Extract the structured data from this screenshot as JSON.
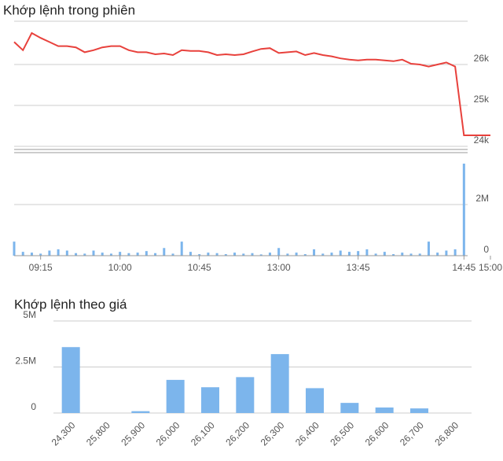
{
  "chart_data": [
    {
      "type": "line",
      "title": "Khớp lệnh trong phiên",
      "color": "#e8413c",
      "x": [
        "09:00",
        "09:05",
        "09:10",
        "09:15",
        "09:20",
        "09:25",
        "09:30",
        "09:35",
        "09:40",
        "09:45",
        "09:50",
        "09:55",
        "10:00",
        "10:05",
        "10:10",
        "10:15",
        "10:20",
        "10:25",
        "10:30",
        "10:35",
        "10:40",
        "10:45",
        "10:50",
        "10:55",
        "11:00",
        "11:05",
        "11:10",
        "11:15",
        "11:20",
        "11:25",
        "13:00",
        "13:05",
        "13:10",
        "13:15",
        "13:20",
        "13:25",
        "13:30",
        "13:35",
        "13:40",
        "13:45",
        "13:50",
        "13:55",
        "14:00",
        "14:05",
        "14:10",
        "14:15",
        "14:20",
        "14:25",
        "14:30",
        "14:35",
        "14:40",
        "14:45",
        "15:00"
      ],
      "values": [
        26550,
        26350,
        26770,
        26650,
        26550,
        26450,
        26450,
        26420,
        26300,
        26350,
        26420,
        26450,
        26450,
        26350,
        26300,
        26300,
        26250,
        26270,
        26230,
        26350,
        26330,
        26330,
        26300,
        26230,
        26250,
        26230,
        26250,
        26320,
        26380,
        26400,
        26280,
        26300,
        26320,
        26230,
        26280,
        26230,
        26200,
        26150,
        26120,
        26100,
        26120,
        26120,
        26100,
        26080,
        26120,
        26020,
        26000,
        25950,
        26000,
        26050,
        25950,
        24270,
        24270
      ],
      "ylim": [
        24000,
        27000
      ],
      "yticks": [
        {
          "value": 24000,
          "label": "24k"
        },
        {
          "value": 25000,
          "label": "25k"
        },
        {
          "value": 26000,
          "label": "26k"
        }
      ],
      "xticks": [
        "09:15",
        "10:00",
        "10:45",
        "13:00",
        "13:45",
        "14:45",
        "15:00"
      ],
      "volume": {
        "color": "#7cb5ec",
        "values": [
          550000,
          150000,
          120000,
          80000,
          200000,
          250000,
          200000,
          100000,
          80000,
          200000,
          120000,
          80000,
          150000,
          100000,
          120000,
          180000,
          100000,
          300000,
          80000,
          550000,
          150000,
          60000,
          120000,
          100000,
          60000,
          120000,
          80000,
          100000,
          50000,
          120000,
          300000,
          80000,
          120000,
          60000,
          250000,
          80000,
          120000,
          200000,
          150000,
          180000,
          250000,
          80000,
          150000,
          60000,
          120000,
          80000,
          80000,
          550000,
          120000,
          200000,
          250000,
          3600000,
          0
        ],
        "ylim": [
          0,
          4000000
        ],
        "yticks": [
          0,
          {
            "value": 2000000,
            "label": "2M"
          }
        ]
      }
    },
    {
      "type": "bar",
      "title": "Khớp lệnh theo giá",
      "color": "#7cb5ec",
      "categories": [
        "24,300",
        "25,800",
        "25,900",
        "26,000",
        "26,100",
        "26,200",
        "26,300",
        "26,400",
        "26,500",
        "26,600",
        "26,700",
        "26,800"
      ],
      "values": [
        3580000,
        0,
        100000,
        1800000,
        1400000,
        1950000,
        3200000,
        1350000,
        550000,
        300000,
        250000,
        0
      ],
      "ylim": [
        0,
        5000000
      ],
      "yticks": [
        0,
        {
          "value": 2500000,
          "label": "2.5M"
        },
        {
          "value": 5000000,
          "label": "5M"
        }
      ]
    }
  ]
}
